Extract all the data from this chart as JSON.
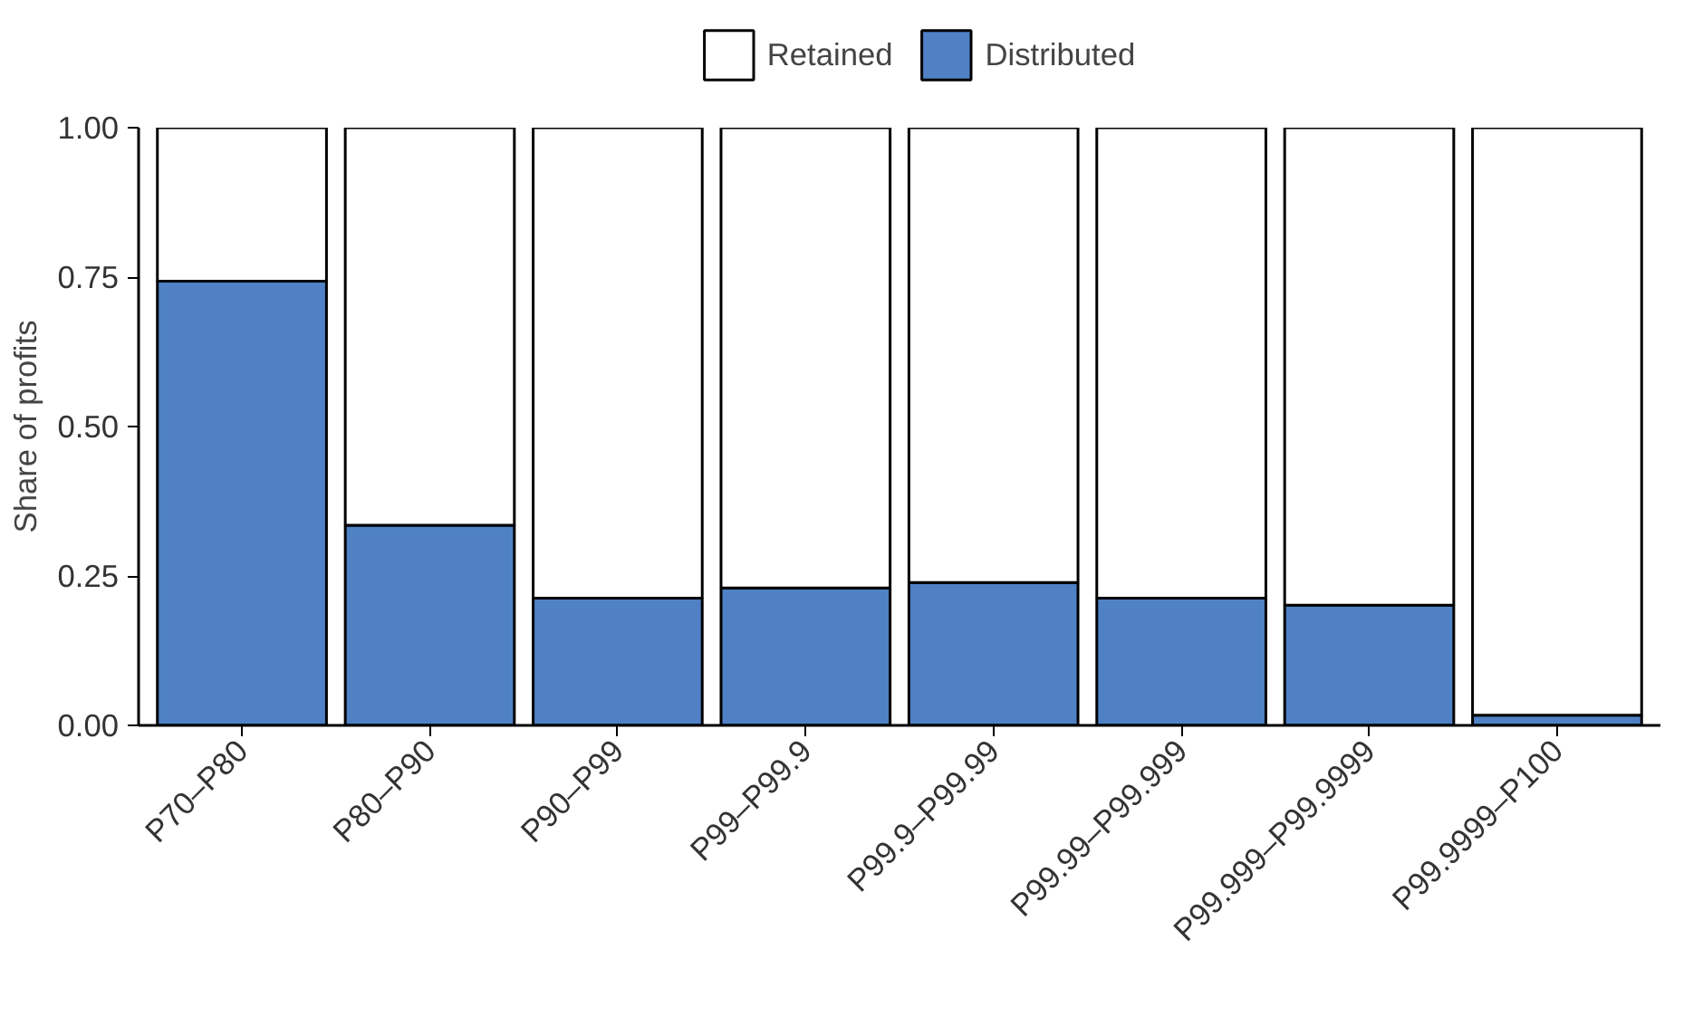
{
  "chart_data": {
    "type": "bar",
    "stacked": true,
    "ylabel": "Share of profits",
    "categories": [
      "P70–P80",
      "P80–P90",
      "P90–P99",
      "P99–P99.9",
      "P99.9–P99.99",
      "P99.99–P99.999",
      "P99.999–P99.9999",
      "P99.9999–P100"
    ],
    "series": [
      {
        "name": "Distributed",
        "color": "#4f81c4",
        "values": [
          0.743,
          0.335,
          0.213,
          0.23,
          0.239,
          0.213,
          0.201,
          0.017
        ]
      },
      {
        "name": "Retained",
        "color": "#ffffff",
        "values": [
          0.257,
          0.665,
          0.787,
          0.77,
          0.761,
          0.787,
          0.799,
          0.983
        ]
      }
    ],
    "ylim": [
      0,
      1
    ],
    "yticks": [
      {
        "value": 0,
        "label": "0.00"
      },
      {
        "value": 0.25,
        "label": "0.25"
      },
      {
        "value": 0.5,
        "label": "0.50"
      },
      {
        "value": 0.75,
        "label": "0.75"
      },
      {
        "value": 1,
        "label": "1.00"
      }
    ],
    "grid": false,
    "legend": "top"
  }
}
